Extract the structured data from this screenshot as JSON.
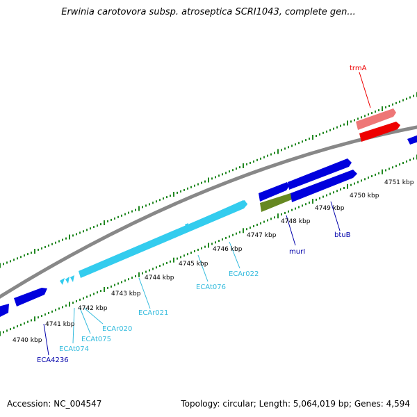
{
  "title": "Erwinia carotovora subsp. atroseptica SCRI1043, complete gen...",
  "footer": {
    "accession": "Accession: NC_004547",
    "summary": "Topology: circular; Length: 5,064,019 bp; Genes: 4,594"
  },
  "kbp_labels": [
    "4740 kbp",
    "4741 kbp",
    "4742 kbp",
    "4743 kbp",
    "4744 kbp",
    "4745 kbp",
    "4746 kbp",
    "4747 kbp",
    "4748 kbp",
    "4749 kbp",
    "4750 kbp",
    "4751 kbp"
  ],
  "gene_labels": [
    "trmA",
    "ECA4236",
    "ECAt074",
    "ECAt075",
    "ECAr020",
    "ECAr021",
    "ECAt076",
    "ECAr022",
    "murI",
    "btuB"
  ],
  "colors": {
    "cds": "#0000dd",
    "rna": "#33ccee",
    "highlight": "#ee0000",
    "highlight_pale": "#ee7777",
    "green": "#668822",
    "tick": "#228822",
    "backbone": "#888888"
  }
}
